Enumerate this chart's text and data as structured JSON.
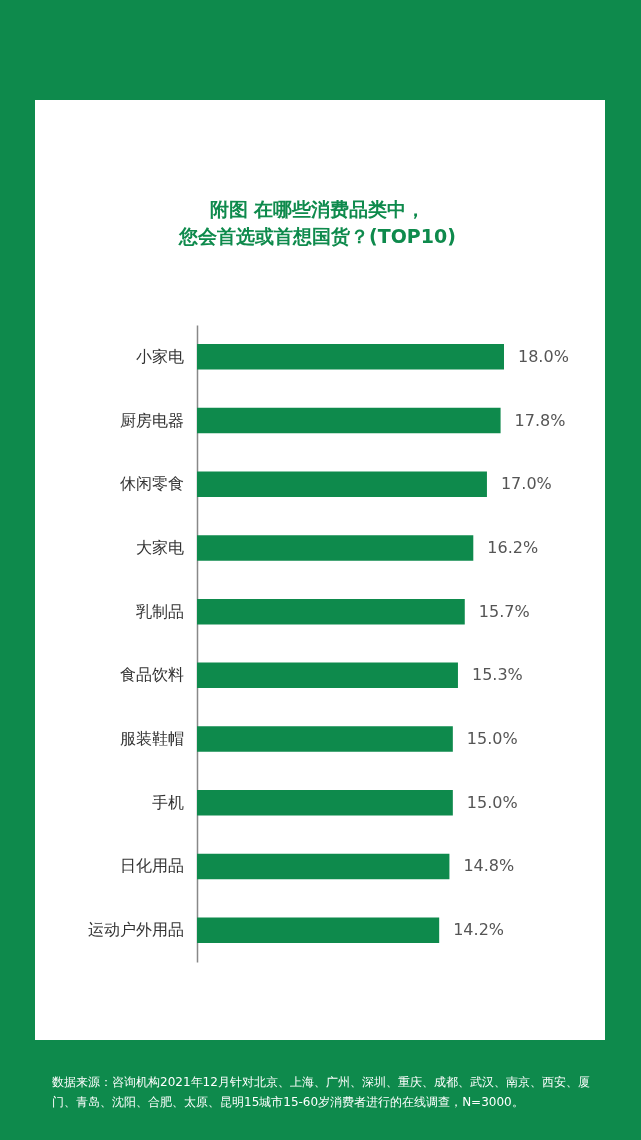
{
  "chart_data": {
    "type": "bar",
    "orientation": "horizontal",
    "title": "附图 在哪些消费品类中，",
    "subtitle": "您会首选或首想国货？(TOP10)",
    "categories": [
      "小家电",
      "厨房电器",
      "休闲零食",
      "大家电",
      "乳制品",
      "食品饮料",
      "服装鞋帽",
      "手机",
      "日化用品",
      "运动户外用品"
    ],
    "values": [
      18.0,
      17.8,
      17.0,
      16.2,
      15.7,
      15.3,
      15.0,
      15.0,
      14.8,
      14.2
    ],
    "value_labels": [
      "18.0%",
      "17.8%",
      "17.0%",
      "16.2%",
      "15.7%",
      "15.3%",
      "15.0%",
      "15.0%",
      "14.8%",
      "14.2%"
    ],
    "color": "#0e8a4c",
    "grid": false,
    "annotations": [
      "数据来源：咨询机构2021年12月针对北京、上海、广州、深圳、重庆、成都、武汉、南京、西安、厦门、青岛、沈阳、合肥、太原、昆明15城市15-60岁消费者进行的在线调查，N=3000。"
    ]
  }
}
